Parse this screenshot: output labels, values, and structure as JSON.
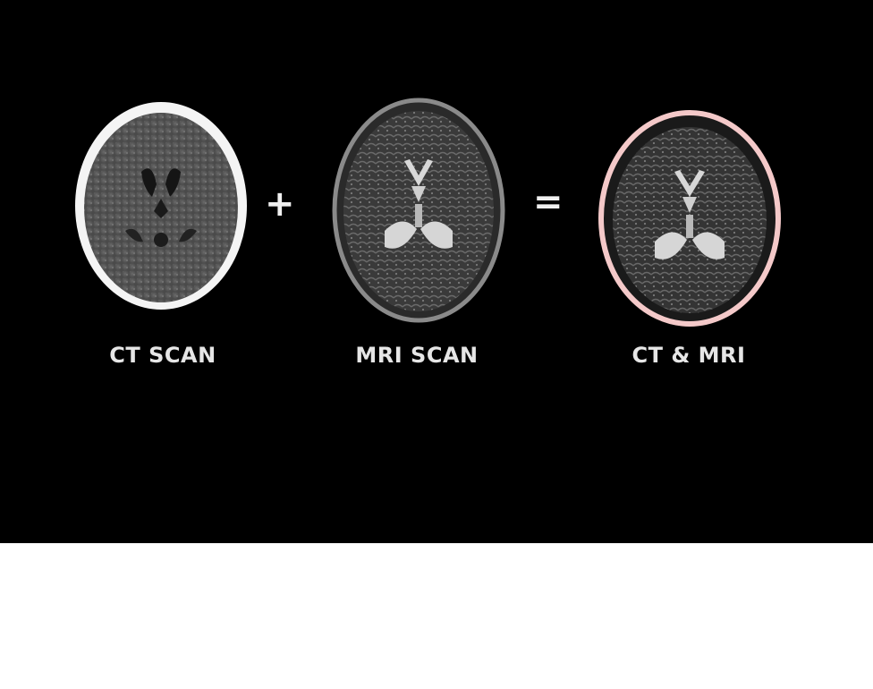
{
  "figure": {
    "operator_plus": "+",
    "operator_equals": "=",
    "panels": [
      {
        "label": "CT SCAN"
      },
      {
        "label": "MRI SCAN"
      },
      {
        "label": "CT & MRI"
      }
    ]
  },
  "colors": {
    "background": "#000000",
    "ct_skull": "#ffffff",
    "fused_outline": "#f4c9c9",
    "label_text": "#e6e6e6"
  }
}
